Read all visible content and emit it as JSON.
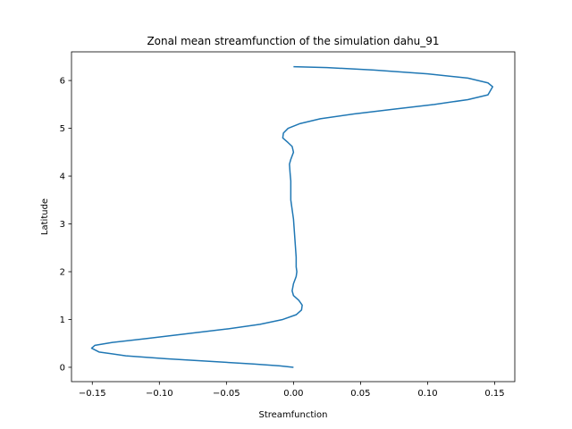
{
  "chart_data": {
    "type": "line",
    "title": "Zonal mean streamfunction of the simulation dahu_91",
    "xlabel": "Streamfunction",
    "ylabel": "Latitude",
    "xlim": [
      -0.1655,
      0.165
    ],
    "ylim": [
      -0.3,
      6.6
    ],
    "xticks": [
      -0.15,
      -0.1,
      -0.05,
      0.0,
      0.05,
      0.1,
      0.15
    ],
    "xtick_labels": [
      "−0.15",
      "−0.10",
      "−0.05",
      "0.00",
      "0.05",
      "0.10",
      "0.15"
    ],
    "yticks": [
      0,
      1,
      2,
      3,
      4,
      5,
      6
    ],
    "ytick_labels": [
      "0",
      "1",
      "2",
      "3",
      "4",
      "5",
      "6"
    ],
    "grid": false,
    "series": [
      {
        "color": "#1f77b4",
        "x": [
          0.0,
          -0.01,
          -0.03,
          -0.06,
          -0.095,
          -0.125,
          -0.145,
          -0.1505,
          -0.148,
          -0.135,
          -0.11,
          -0.08,
          -0.05,
          -0.025,
          -0.008,
          0.002,
          0.006,
          0.0065,
          0.004,
          0.0,
          -0.001,
          0.0,
          0.002,
          0.0025,
          0.002,
          0.002,
          0.0015,
          0.001,
          0.0005,
          0.0,
          -0.001,
          -0.002,
          -0.002,
          -0.002,
          -0.0025,
          -0.003,
          -0.002,
          0.0,
          -0.001,
          -0.004,
          -0.008,
          -0.0075,
          -0.004,
          0.005,
          0.02,
          0.045,
          0.075,
          0.105,
          0.13,
          0.145,
          0.1485,
          0.145,
          0.13,
          0.1,
          0.06,
          0.025,
          0.0
        ],
        "y": [
          0.0,
          0.03,
          0.07,
          0.12,
          0.18,
          0.24,
          0.32,
          0.4,
          0.46,
          0.52,
          0.6,
          0.7,
          0.8,
          0.9,
          1.0,
          1.1,
          1.2,
          1.3,
          1.4,
          1.5,
          1.6,
          1.75,
          1.9,
          2.0,
          2.1,
          2.3,
          2.5,
          2.7,
          2.9,
          3.1,
          3.3,
          3.5,
          3.7,
          3.9,
          4.05,
          4.25,
          4.35,
          4.5,
          4.62,
          4.7,
          4.8,
          4.9,
          5.0,
          5.1,
          5.2,
          5.3,
          5.4,
          5.5,
          5.6,
          5.7,
          5.87,
          5.95,
          6.05,
          6.14,
          6.22,
          6.27,
          6.29
        ]
      }
    ]
  }
}
